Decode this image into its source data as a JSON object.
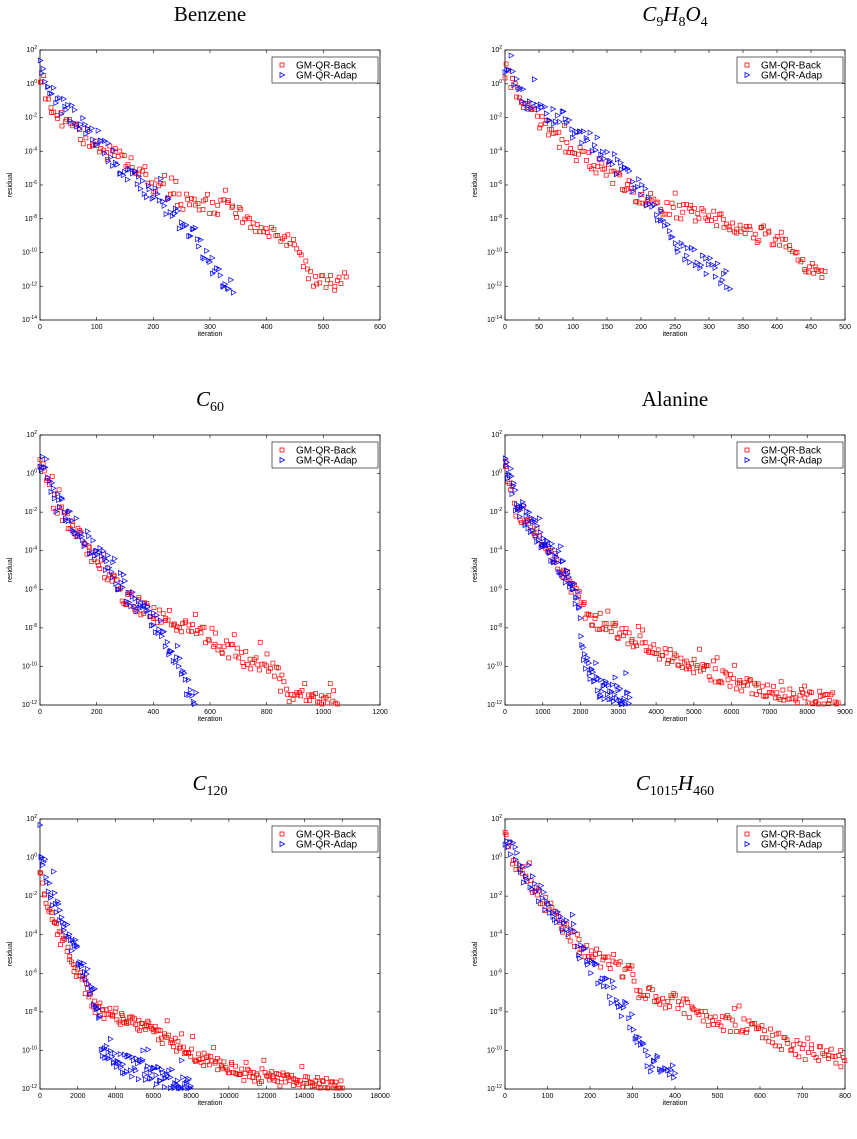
{
  "chart_data": [
    {
      "type": "scatter",
      "title_parts": [
        {
          "t": "Benzene"
        }
      ],
      "xlabel": "iteration",
      "ylabel": "residual",
      "xlim": [
        0,
        600
      ],
      "xticks": [
        0,
        100,
        200,
        300,
        400,
        500,
        600
      ],
      "ylim_exp": [
        -14,
        2
      ],
      "yticks_exp": [
        2,
        0,
        -2,
        -4,
        -6,
        -8,
        -10,
        -12,
        -14
      ],
      "legend": [
        "GM-QR-Back",
        "GM-QR-Adap"
      ],
      "series": [
        {
          "name": "GM-QR-Back",
          "marker": "square",
          "color": "#ff0000",
          "anchors": [
            [
              0,
              0.3
            ],
            [
              15,
              -1.3
            ],
            [
              50,
              -2.5
            ],
            [
              100,
              -3.8
            ],
            [
              150,
              -4.5
            ],
            [
              200,
              -6.0
            ],
            [
              250,
              -7.0
            ],
            [
              300,
              -7.3
            ],
            [
              340,
              -7.3
            ],
            [
              355,
              -7.9
            ],
            [
              400,
              -8.8
            ],
            [
              440,
              -9.2
            ],
            [
              480,
              -11.6
            ],
            [
              500,
              -11.8
            ],
            [
              540,
              -11.8
            ]
          ],
          "jitter": 0.45,
          "count": 150
        },
        {
          "name": "GM-QR-Adap",
          "marker": "triangle",
          "color": "#0000ff",
          "anchors": [
            [
              0,
              1.2
            ],
            [
              30,
              -1.0
            ],
            [
              100,
              -3.2
            ],
            [
              150,
              -5.3
            ],
            [
              200,
              -6.5
            ],
            [
              250,
              -8.2
            ],
            [
              270,
              -9.0
            ],
            [
              290,
              -10.0
            ],
            [
              310,
              -11.2
            ],
            [
              340,
              -11.9
            ]
          ],
          "jitter": 0.55,
          "count": 110
        }
      ]
    },
    {
      "type": "scatter",
      "title_parts": [
        {
          "t": "C"
        },
        {
          "s": "9"
        },
        {
          "t": "H"
        },
        {
          "s": "8"
        },
        {
          "t": "O"
        },
        {
          "s": "4"
        }
      ],
      "xlabel": "iteration",
      "ylabel": "residual",
      "xlim": [
        0,
        500
      ],
      "xticks": [
        0,
        50,
        100,
        150,
        200,
        250,
        300,
        350,
        400,
        450,
        500
      ],
      "ylim_exp": [
        -14,
        2
      ],
      "yticks_exp": [
        2,
        0,
        -2,
        -4,
        -6,
        -8,
        -10,
        -12,
        -14
      ],
      "legend": [
        "GM-QR-Back",
        "GM-QR-Adap"
      ],
      "series": [
        {
          "name": "GM-QR-Back",
          "marker": "square",
          "color": "#ff0000",
          "anchors": [
            [
              0,
              0.8
            ],
            [
              20,
              -0.5
            ],
            [
              50,
              -2.2
            ],
            [
              100,
              -4.0
            ],
            [
              150,
              -5.2
            ],
            [
              200,
              -6.8
            ],
            [
              250,
              -7.5
            ],
            [
              300,
              -7.8
            ],
            [
              350,
              -8.8
            ],
            [
              380,
              -9.0
            ],
            [
              410,
              -9.2
            ],
            [
              430,
              -10.5
            ],
            [
              450,
              -11.0
            ],
            [
              470,
              -11.5
            ]
          ],
          "jitter": 0.5,
          "count": 170
        },
        {
          "name": "GM-QR-Adap",
          "marker": "triangle",
          "color": "#0000ff",
          "anchors": [
            [
              0,
              0.8
            ],
            [
              30,
              -0.8
            ],
            [
              80,
              -2.2
            ],
            [
              130,
              -3.5
            ],
            [
              180,
              -5.5
            ],
            [
              220,
              -7.2
            ],
            [
              240,
              -8.5
            ],
            [
              260,
              -9.8
            ],
            [
              300,
              -10.8
            ],
            [
              330,
              -11.8
            ]
          ],
          "jitter": 0.6,
          "count": 120
        }
      ]
    },
    {
      "type": "scatter",
      "title_parts": [
        {
          "t": "C"
        },
        {
          "s": "60"
        }
      ],
      "xlabel": "iteration",
      "ylabel": "residual",
      "xlim": [
        0,
        1200
      ],
      "xticks": [
        0,
        200,
        400,
        600,
        800,
        1000,
        1200
      ],
      "ylim_exp": [
        -12,
        2
      ],
      "yticks_exp": [
        2,
        0,
        -2,
        -4,
        -6,
        -8,
        -10,
        -12
      ],
      "legend": [
        "GM-QR-Back",
        "GM-QR-Adap"
      ],
      "series": [
        {
          "name": "GM-QR-Back",
          "marker": "square",
          "color": "#ff0000",
          "anchors": [
            [
              0,
              0.5
            ],
            [
              50,
              -1.5
            ],
            [
              100,
              -2.5
            ],
            [
              200,
              -4.5
            ],
            [
              300,
              -6.5
            ],
            [
              400,
              -7.2
            ],
            [
              500,
              -7.8
            ],
            [
              600,
              -8.5
            ],
            [
              700,
              -9.5
            ],
            [
              800,
              -10.0
            ],
            [
              840,
              -10.2
            ],
            [
              850,
              -11.5
            ],
            [
              900,
              -11.6
            ],
            [
              1000,
              -11.8
            ],
            [
              1050,
              -11.9
            ]
          ],
          "jitter": 0.45,
          "count": 180
        },
        {
          "name": "GM-QR-Adap",
          "marker": "triangle",
          "color": "#0000ff",
          "anchors": [
            [
              0,
              0.8
            ],
            [
              50,
              -1.3
            ],
            [
              150,
              -3.2
            ],
            [
              250,
              -5.0
            ],
            [
              350,
              -7.0
            ],
            [
              420,
              -8.0
            ],
            [
              480,
              -9.5
            ],
            [
              510,
              -10.8
            ],
            [
              550,
              -11.8
            ]
          ],
          "jitter": 0.55,
          "count": 120
        }
      ]
    },
    {
      "type": "scatter",
      "title_parts": [
        {
          "t": "Alanine"
        }
      ],
      "xlabel": "iteration",
      "ylabel": "residual",
      "xlim": [
        0,
        9000
      ],
      "xticks": [
        0,
        1000,
        2000,
        3000,
        4000,
        5000,
        6000,
        7000,
        8000,
        9000
      ],
      "ylim_exp": [
        -12,
        2
      ],
      "yticks_exp": [
        2,
        0,
        -2,
        -4,
        -6,
        -8,
        -10,
        -12
      ],
      "legend": [
        "GM-QR-Back",
        "GM-QR-Adap"
      ],
      "series": [
        {
          "name": "GM-QR-Back",
          "marker": "square",
          "color": "#ff0000",
          "anchors": [
            [
              0,
              0.5
            ],
            [
              300,
              -2.0
            ],
            [
              1000,
              -3.5
            ],
            [
              1500,
              -5.0
            ],
            [
              2000,
              -6.5
            ],
            [
              2200,
              -7.6
            ],
            [
              3000,
              -8.2
            ],
            [
              4000,
              -9.2
            ],
            [
              5000,
              -10.0
            ],
            [
              6000,
              -10.8
            ],
            [
              7000,
              -11.3
            ],
            [
              8000,
              -11.6
            ],
            [
              8800,
              -11.8
            ]
          ],
          "jitter": 0.4,
          "count": 220
        },
        {
          "name": "GM-QR-Adap",
          "marker": "triangle",
          "color": "#0000ff",
          "anchors": [
            [
              0,
              0.5
            ],
            [
              300,
              -1.5
            ],
            [
              800,
              -3.0
            ],
            [
              1500,
              -4.8
            ],
            [
              1900,
              -6.5
            ],
            [
              2000,
              -8.0
            ],
            [
              2100,
              -9.5
            ],
            [
              2300,
              -10.8
            ],
            [
              2800,
              -11.4
            ],
            [
              3300,
              -11.8
            ]
          ],
          "jitter": 0.55,
          "count": 140
        }
      ]
    },
    {
      "type": "scatter",
      "title_parts": [
        {
          "t": "C"
        },
        {
          "s": "120"
        }
      ],
      "xlabel": "iteration",
      "ylabel": "residual",
      "xlim": [
        0,
        18000
      ],
      "xticks": [
        0,
        2000,
        4000,
        6000,
        8000,
        10000,
        12000,
        14000,
        16000,
        18000
      ],
      "ylim_exp": [
        -12,
        2
      ],
      "yticks_exp": [
        2,
        0,
        -2,
        -4,
        -6,
        -8,
        -10,
        -12
      ],
      "legend": [
        "GM-QR-Back",
        "GM-QR-Adap"
      ],
      "series": [
        {
          "name": "GM-QR-Back",
          "marker": "square",
          "color": "#ff0000",
          "anchors": [
            [
              0,
              -0.5
            ],
            [
              400,
              -2.5
            ],
            [
              1000,
              -4.0
            ],
            [
              2000,
              -6.0
            ],
            [
              3000,
              -7.8
            ],
            [
              4000,
              -8.2
            ],
            [
              6000,
              -9.0
            ],
            [
              8000,
              -10.2
            ],
            [
              10000,
              -11.0
            ],
            [
              12000,
              -11.4
            ],
            [
              14000,
              -11.7
            ],
            [
              16000,
              -11.9
            ]
          ],
          "jitter": 0.4,
          "count": 240
        },
        {
          "name": "GM-QR-Adap",
          "marker": "triangle",
          "color": "#0000ff",
          "anchors": [
            [
              0,
              0.8
            ],
            [
              500,
              -1.5
            ],
            [
              1000,
              -2.8
            ],
            [
              2000,
              -5.0
            ],
            [
              3000,
              -7.5
            ],
            [
              3300,
              -10.0
            ],
            [
              4000,
              -10.6
            ],
            [
              6000,
              -11.2
            ],
            [
              7000,
              -11.6
            ],
            [
              8000,
              -11.9
            ]
          ],
          "jitter": 0.55,
          "count": 150
        }
      ]
    },
    {
      "type": "scatter",
      "title_parts": [
        {
          "t": "C"
        },
        {
          "s": "1015"
        },
        {
          "t": "H"
        },
        {
          "s": "460"
        }
      ],
      "xlabel": "iteration",
      "ylabel": "residual",
      "xlim": [
        0,
        800
      ],
      "xticks": [
        0,
        100,
        200,
        300,
        400,
        500,
        600,
        700,
        800
      ],
      "ylim_exp": [
        -12,
        2
      ],
      "yticks_exp": [
        2,
        0,
        -2,
        -4,
        -6,
        -8,
        -10,
        -12
      ],
      "legend": [
        "GM-QR-Back",
        "GM-QR-Adap"
      ],
      "series": [
        {
          "name": "GM-QR-Back",
          "marker": "square",
          "color": "#ff0000",
          "anchors": [
            [
              0,
              1.0
            ],
            [
              30,
              -0.5
            ],
            [
              100,
              -2.5
            ],
            [
              150,
              -4.0
            ],
            [
              200,
              -5.0
            ],
            [
              250,
              -5.5
            ],
            [
              300,
              -6.0
            ],
            [
              310,
              -7.0
            ],
            [
              400,
              -7.5
            ],
            [
              450,
              -8.0
            ],
            [
              500,
              -8.5
            ],
            [
              600,
              -9.0
            ],
            [
              700,
              -10.0
            ],
            [
              800,
              -10.5
            ]
          ],
          "jitter": 0.45,
          "count": 200
        },
        {
          "name": "GM-QR-Adap",
          "marker": "triangle",
          "color": "#0000ff",
          "anchors": [
            [
              0,
              1.0
            ],
            [
              50,
              -1.0
            ],
            [
              120,
              -3.0
            ],
            [
              200,
              -5.5
            ],
            [
              250,
              -7.0
            ],
            [
              300,
              -8.5
            ],
            [
              330,
              -10.5
            ],
            [
              400,
              -11.0
            ]
          ],
          "jitter": 0.55,
          "count": 110
        }
      ]
    }
  ]
}
